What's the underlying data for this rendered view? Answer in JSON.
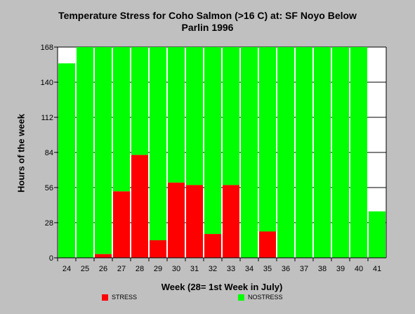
{
  "chart_data": {
    "type": "bar",
    "stacked": true,
    "title_line1": "Temperature Stress for Coho Salmon (>16 C) at: SF Noyo Below",
    "title_line2": "Parlin 1996",
    "xlabel": "Week (28= 1st Week in July)",
    "ylabel": "Hours of the week",
    "ylim": [
      0,
      168
    ],
    "yticks": [
      0,
      28,
      56,
      84,
      112,
      140,
      168
    ],
    "grid": true,
    "legend_placement": "bottom",
    "categories": [
      "24",
      "25",
      "26",
      "27",
      "28",
      "29",
      "30",
      "31",
      "32",
      "33",
      "34",
      "35",
      "36",
      "37",
      "38",
      "39",
      "40",
      "41"
    ],
    "series": [
      {
        "name": "STRESS",
        "color": "#ff0000",
        "values": [
          0,
          0,
          3,
          53,
          82,
          14,
          60,
          58,
          19,
          58,
          0,
          21,
          0,
          0,
          0,
          0,
          0,
          0
        ]
      },
      {
        "name": "NOSTRESS",
        "color": "#00ff00",
        "values": [
          155,
          168,
          165,
          115,
          86,
          154,
          108,
          110,
          149,
          110,
          168,
          147,
          168,
          168,
          168,
          168,
          168,
          37
        ]
      }
    ]
  }
}
